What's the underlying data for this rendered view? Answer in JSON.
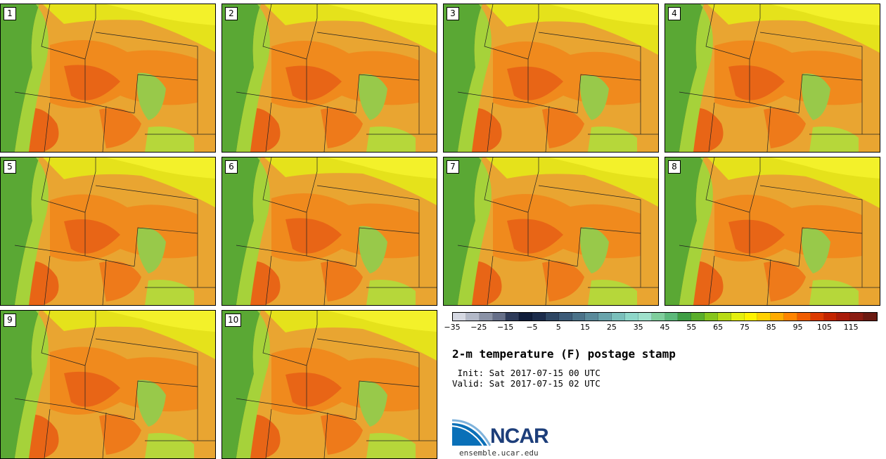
{
  "panels": [
    {
      "label": "1"
    },
    {
      "label": "2"
    },
    {
      "label": "3"
    },
    {
      "label": "4"
    },
    {
      "label": "5"
    },
    {
      "label": "6"
    },
    {
      "label": "7"
    },
    {
      "label": "8"
    },
    {
      "label": "9"
    },
    {
      "label": "10"
    }
  ],
  "colorbar": {
    "colors": [
      "#d5d8e2",
      "#b3b9c8",
      "#8a92a6",
      "#666f89",
      "#2e3b5a",
      "#101d3a",
      "#1c2c4b",
      "#2e4663",
      "#3d5b78",
      "#4b7289",
      "#5a8a9b",
      "#69a4ac",
      "#7abfbb",
      "#8ed7c9",
      "#9fe1cc",
      "#7fce9c",
      "#5cb97a",
      "#3f9e44",
      "#5aae2c",
      "#86c51d",
      "#b8db15",
      "#e4ef10",
      "#fff200",
      "#ffd000",
      "#ffab00",
      "#ff8400",
      "#f05c00",
      "#dc3a00",
      "#c32400",
      "#a81b0a",
      "#8a1c12",
      "#6b1a12"
    ],
    "tick_labels": [
      "−35",
      "−25",
      "−15",
      "−5",
      "5",
      "15",
      "25",
      "35",
      "45",
      "55",
      "65",
      "75",
      "85",
      "95",
      "105",
      "115"
    ]
  },
  "title": "2-m temperature (F) postage stamp",
  "init_line": " Init: Sat 2017-07-15 00 UTC",
  "valid_line": "Valid: Sat 2017-07-15 02 UTC",
  "logo": {
    "text": "NCAR",
    "color": "#1d3e7a"
  },
  "site": "ensemble.ucar.edu"
}
